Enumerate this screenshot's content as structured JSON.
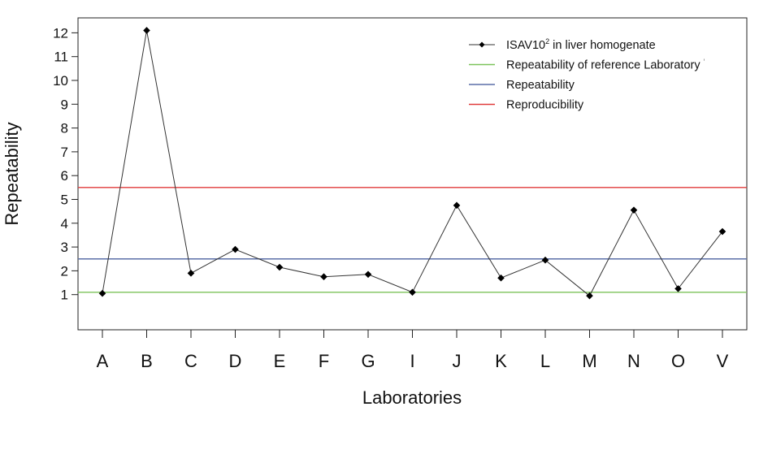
{
  "chart_data": {
    "type": "line",
    "title": "",
    "xlabel": "Laboratories",
    "ylabel": "Repeatability",
    "categories": [
      "A",
      "B",
      "C",
      "D",
      "E",
      "F",
      "G",
      "I",
      "J",
      "K",
      "L",
      "M",
      "N",
      "O",
      "V"
    ],
    "yticks": [
      1,
      2,
      3,
      4,
      5,
      6,
      7,
      8,
      9,
      10,
      11,
      12
    ],
    "ylim": [
      -0.4,
      12.5
    ],
    "grid": false,
    "legend_position": "top-right",
    "series": [
      {
        "name": "ISAV10",
        "name_sup": "2",
        "name_rest": " in liver homogenate",
        "color": "#000000",
        "marker": "diamond",
        "values": [
          1.05,
          12.1,
          1.9,
          2.9,
          2.15,
          1.75,
          1.85,
          1.1,
          4.75,
          1.7,
          2.45,
          0.95,
          4.55,
          1.25,
          3.65
        ]
      }
    ],
    "reference_lines": [
      {
        "name": "Repeatability of reference Laboratory",
        "suffix": "'",
        "color": "#7cc35a",
        "value": 1.1
      },
      {
        "name": "Repeatability",
        "color": "#5b6fa8",
        "value": 2.5
      },
      {
        "name": "Reproducibility",
        "color": "#e03a3a",
        "value": 5.5
      }
    ]
  }
}
